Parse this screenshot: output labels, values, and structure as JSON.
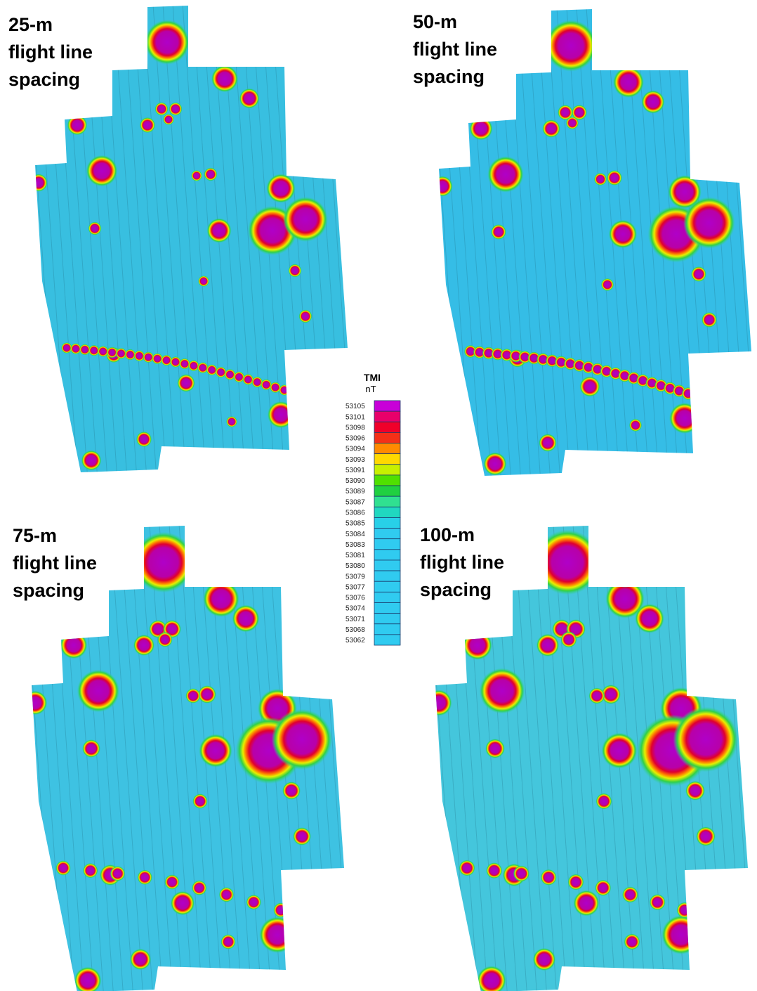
{
  "panels": [
    {
      "label": [
        "25-m",
        "flight line",
        "spacing"
      ]
    },
    {
      "label": [
        "50-m",
        "flight line",
        "spacing"
      ]
    },
    {
      "label": [
        "75-m",
        "flight line",
        "spacing"
      ]
    },
    {
      "label": [
        "100-m",
        "flight line",
        "spacing"
      ]
    }
  ],
  "legend": {
    "title": "TMI",
    "unit": "nT",
    "values": [
      "53105",
      "53101",
      "53098",
      "53096",
      "53094",
      "53093",
      "53091",
      "53090",
      "53089",
      "53087",
      "53086",
      "53085",
      "53084",
      "53083",
      "53081",
      "53080",
      "53079",
      "53077",
      "53076",
      "53074",
      "53071",
      "53068",
      "53062"
    ],
    "colors": [
      "#c800d8",
      "#e8006a",
      "#f0002a",
      "#f43018",
      "#ff8a00",
      "#ffd800",
      "#c8f000",
      "#50e000",
      "#20d040",
      "#30e090",
      "#20d8c0",
      "#28d0e8",
      "#30cbf0",
      "#30cbf0",
      "#30cbf0",
      "#30cbf0",
      "#30cbf0",
      "#30cbf0",
      "#30cbf0",
      "#30cbf0",
      "#30cbf0",
      "#30cbf0",
      "#30cbf0"
    ]
  }
}
